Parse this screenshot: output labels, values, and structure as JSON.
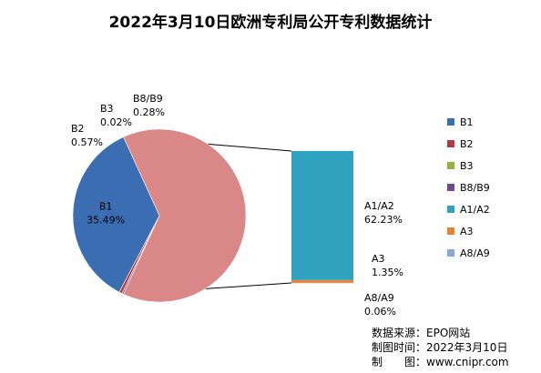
{
  "chart_data": {
    "type": "pie",
    "subtype": "bar-of-pie",
    "title": "2022年3月10日欧洲专利局公开专利数据统计",
    "series": [
      {
        "name": "B1",
        "value": 35.49,
        "label": "35.49%",
        "color": "#3b6db3",
        "group": "pie"
      },
      {
        "name": "B2",
        "value": 0.57,
        "label": "0.57%",
        "color": "#b93b39",
        "group": "pie"
      },
      {
        "name": "B3",
        "value": 0.02,
        "label": "0.02%",
        "color": "#8cb43e",
        "group": "pie"
      },
      {
        "name": "B8/B9",
        "value": 0.28,
        "label": "0.28%",
        "color": "#6e4a93",
        "group": "pie"
      },
      {
        "name": "A1/A2",
        "value": 62.23,
        "label": "62.23%",
        "color": "#2ea2bf",
        "group": "bar"
      },
      {
        "name": "A3",
        "value": 1.35,
        "label": "1.35%",
        "color": "#e8842f",
        "group": "bar"
      },
      {
        "name": "A8/A9",
        "value": 0.06,
        "label": "0.06%",
        "color": "#8ba7d5",
        "group": "bar"
      }
    ],
    "other_slice_color": "#d98787",
    "legend_position": "right"
  },
  "source": {
    "line1": "数据来源：EPO网站",
    "line2": "制图时间：2022年3月10日",
    "line3": "制　　图：www.cnipr.com"
  }
}
